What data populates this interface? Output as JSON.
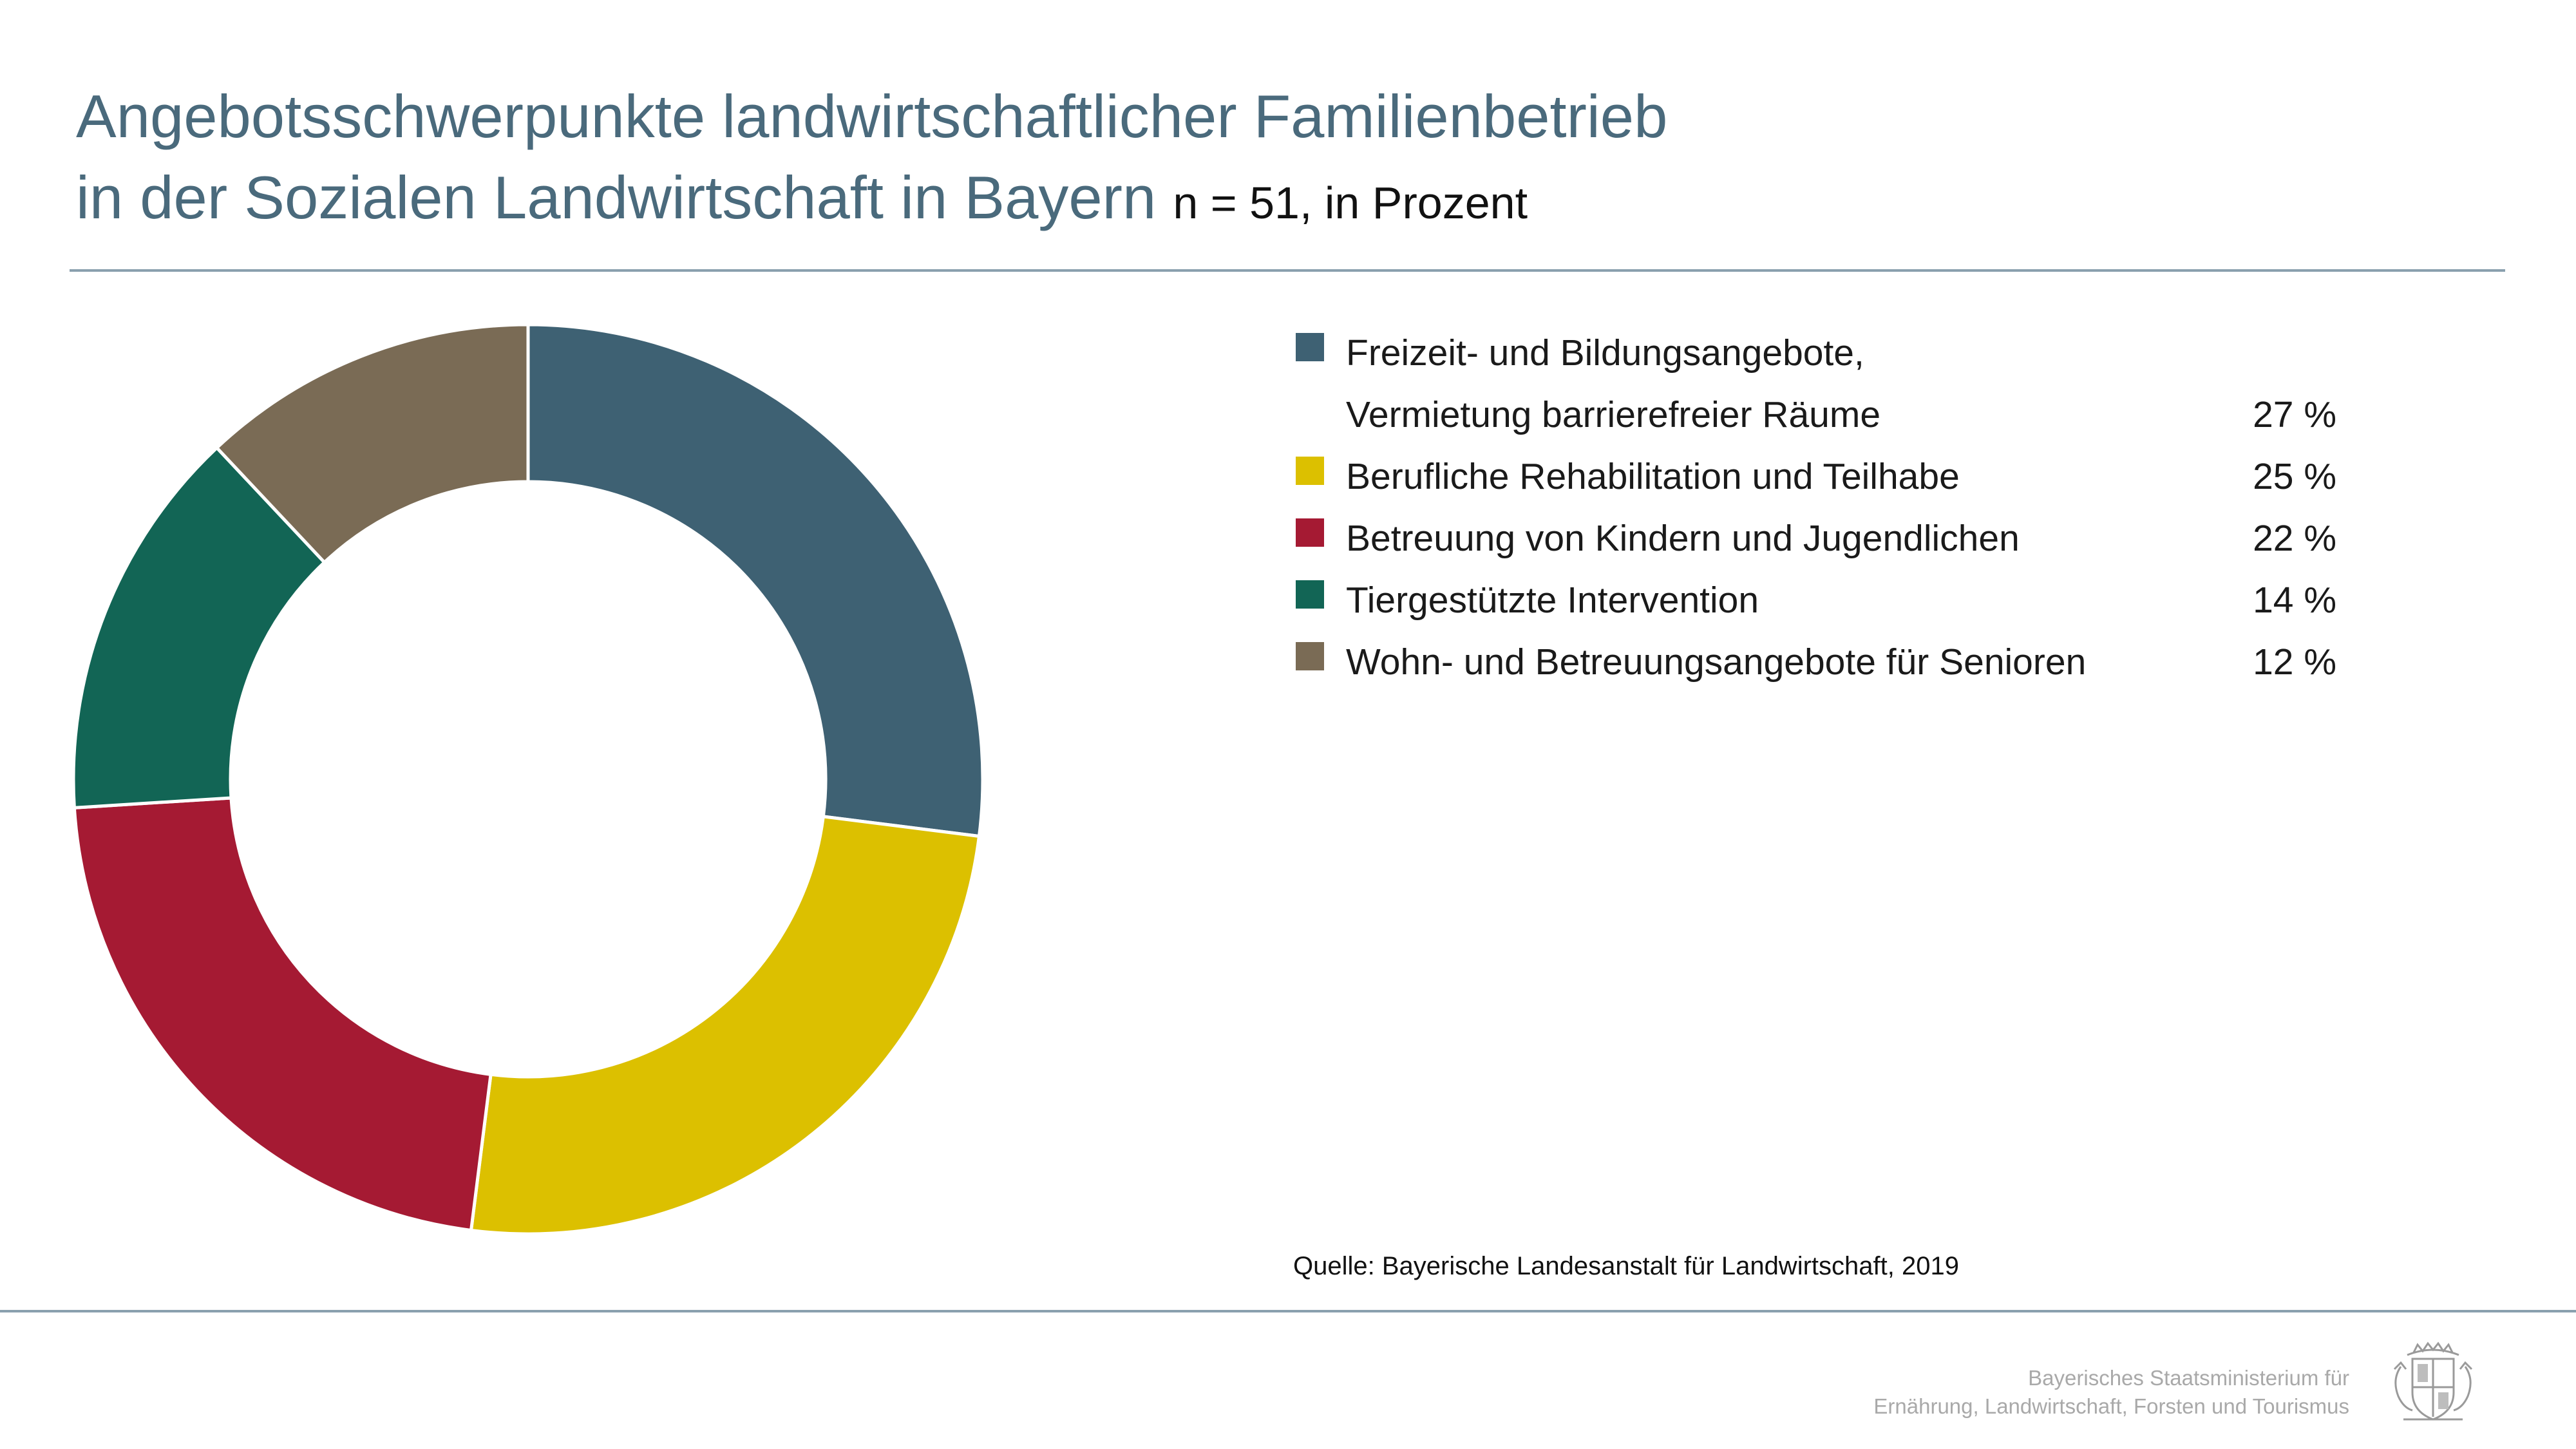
{
  "title": {
    "line1": "Angebotsschwerpunkte landwirtschaftlicher Familienbetrieb",
    "line2": "in der Sozialen Landwirtschaft in Bayern",
    "subtitle": "n = 51, in Prozent"
  },
  "chart_data": {
    "type": "pie",
    "donut": true,
    "legend_position": "right",
    "value_suffix": " %",
    "slices": [
      {
        "label": "Freizeit- und Bildungsangebote,\nVermietung barrierefreier Räume",
        "value": 27,
        "value_label": "27 %",
        "color": "#3e6173"
      },
      {
        "label": "Berufliche Rehabilitation und Teilhabe",
        "value": 25,
        "value_label": "25 %",
        "color": "#dcc000"
      },
      {
        "label": "Betreuung von Kindern und Jugendlichen",
        "value": 22,
        "value_label": "22 %",
        "color": "#a51a33"
      },
      {
        "label": "Tiergestützte Intervention",
        "value": 14,
        "value_label": "14 %",
        "color": "#126555"
      },
      {
        "label": "Wohn- und Betreuungsangebote für Senioren",
        "value": 12,
        "value_label": "12 %",
        "color": "#7a6b55"
      }
    ]
  },
  "source": "Quelle: Bayerische Landesanstalt für Landwirtschaft, 2019",
  "footer": {
    "ministry_line1": "Bayerisches Staatsministerium für",
    "ministry_line2": "Ernährung, Landwirtschaft, Forsten und Tourismus"
  }
}
